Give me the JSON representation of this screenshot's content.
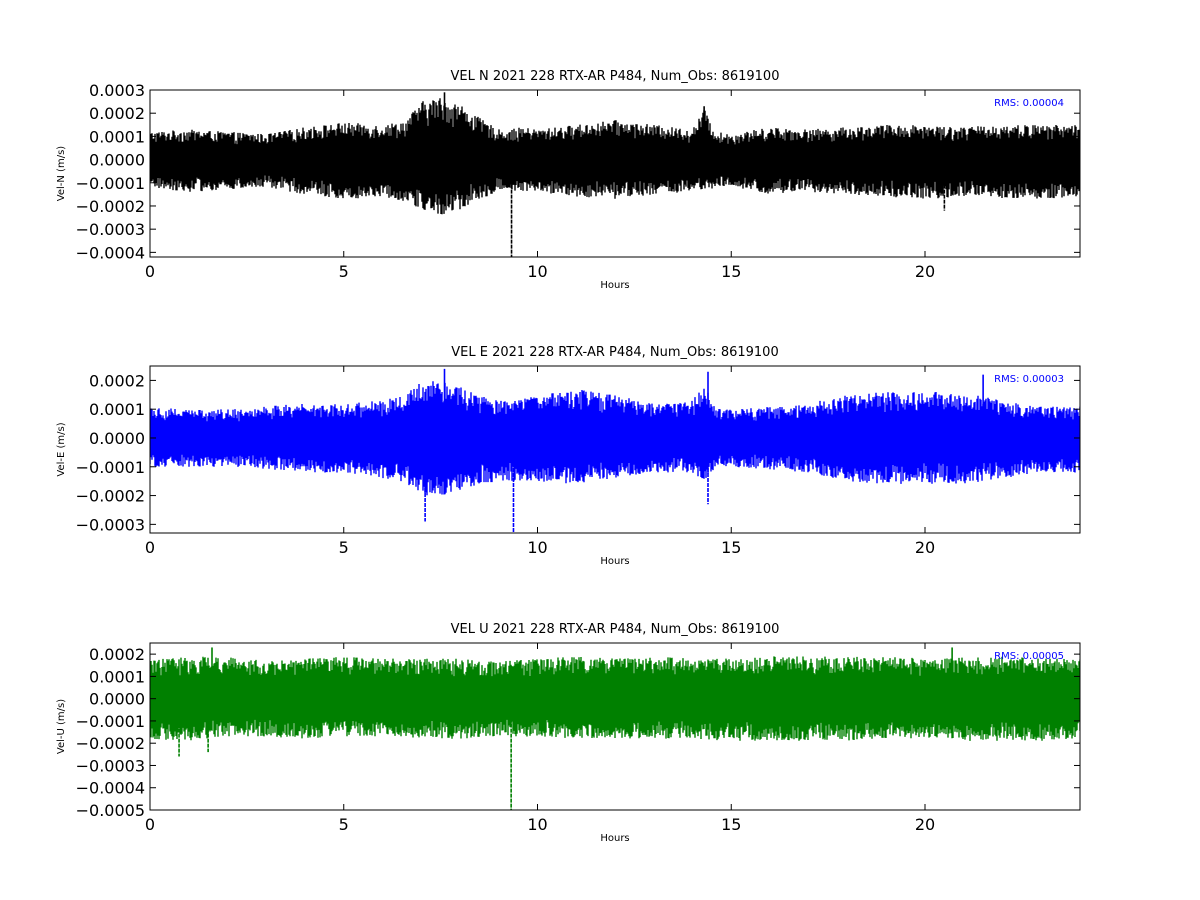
{
  "chart_data": [
    {
      "type": "line",
      "title": "VEL N 2021 228 RTX-AR  P484, Num_Obs: 8619100",
      "xlabel": "Hours",
      "ylabel": "Vel-N (m/s)",
      "xlim": [
        0,
        24
      ],
      "ylim": [
        -0.00042,
        0.0003
      ],
      "xticks": [
        "0",
        "5",
        "10",
        "15",
        "20"
      ],
      "yticks": [
        "0.0003",
        "0.0002",
        "0.0001",
        "0.0000",
        "−0.0001",
        "−0.0002",
        "−0.0003",
        "−0.0004"
      ],
      "ytick_values": [
        0.0003,
        0.0002,
        0.0001,
        0.0,
        -0.0001,
        -0.0002,
        -0.0003,
        -0.0004
      ],
      "annotation": "RMS:  0.00004",
      "color": "#000000",
      "grid": false,
      "envelope": {
        "hours": [
          0,
          1,
          2,
          3,
          4,
          5,
          6,
          6.6,
          7,
          7.5,
          8,
          8.5,
          9,
          9.3,
          9.6,
          10,
          11,
          12,
          13,
          14,
          14.3,
          14.6,
          15,
          16,
          17,
          18,
          19,
          20,
          21,
          22,
          23,
          24
        ],
        "upper": [
          0.00012,
          0.00013,
          0.00012,
          0.00011,
          0.00014,
          0.00016,
          0.00015,
          0.00017,
          0.00025,
          0.00027,
          0.00024,
          0.00018,
          0.00013,
          0.00013,
          0.00014,
          0.00013,
          0.00015,
          0.00017,
          0.00015,
          0.00013,
          0.00022,
          0.00012,
          0.00011,
          0.00014,
          0.00013,
          0.00014,
          0.00015,
          0.00015,
          0.00014,
          0.00015,
          0.00015,
          0.00015
        ],
        "lower": [
          -0.00012,
          -0.00014,
          -0.00013,
          -0.00012,
          -0.00015,
          -0.00017,
          -0.00016,
          -0.00018,
          -0.00022,
          -0.00024,
          -0.00022,
          -0.00017,
          -0.00014,
          -0.00013,
          -0.00014,
          -0.00014,
          -0.00016,
          -0.00017,
          -0.00015,
          -0.00014,
          -0.00014,
          -0.00012,
          -0.00012,
          -0.00015,
          -0.00014,
          -0.00015,
          -0.00016,
          -0.00017,
          -0.00016,
          -0.00017,
          -0.00017,
          -0.00016
        ]
      },
      "spikes": [
        {
          "hour": 9.33,
          "value": -0.00042
        },
        {
          "hour": 7.6,
          "value": 0.00029
        },
        {
          "hour": 14.3,
          "value": 0.00023
        },
        {
          "hour": 20.5,
          "value": -0.00022
        }
      ]
    },
    {
      "type": "line",
      "title": "VEL E 2021 228 RTX-AR  P484, Num_Obs: 8619100",
      "xlabel": "Hours",
      "ylabel": "Vel-E (m/s)",
      "xlim": [
        0,
        24
      ],
      "ylim": [
        -0.00033,
        0.00025
      ],
      "xticks": [
        "0",
        "5",
        "10",
        "15",
        "20"
      ],
      "yticks": [
        "0.0002",
        "0.0001",
        "0.0000",
        "−0.0001",
        "−0.0002",
        "−0.0003"
      ],
      "ytick_values": [
        0.0002,
        0.0001,
        0.0,
        -0.0001,
        -0.0002,
        -0.0003
      ],
      "annotation": "RMS:  0.00003",
      "color": "#0000ff",
      "grid": false,
      "envelope": {
        "hours": [
          0,
          1,
          2,
          3,
          4,
          5,
          6,
          6.6,
          7,
          7.5,
          8,
          8.5,
          9,
          9.4,
          10,
          11,
          12,
          13,
          14,
          14.3,
          14.6,
          15,
          16,
          17,
          18,
          19,
          20,
          21,
          22,
          23,
          24
        ],
        "upper": [
          0.00011,
          0.0001,
          0.0001,
          0.00011,
          0.00012,
          0.00012,
          0.00013,
          0.00015,
          0.0002,
          0.00021,
          0.00018,
          0.00015,
          0.00013,
          0.00013,
          0.00015,
          0.00017,
          0.00015,
          0.00012,
          0.00013,
          0.00019,
          0.00011,
          0.0001,
          0.00011,
          0.00012,
          0.00015,
          0.00016,
          0.00016,
          0.00016,
          0.00013,
          0.00011,
          0.00011
        ],
        "lower": [
          -0.0001,
          -0.0001,
          -0.0001,
          -0.00011,
          -0.00012,
          -0.00012,
          -0.00014,
          -0.00016,
          -0.0002,
          -0.0002,
          -0.00018,
          -0.00016,
          -0.00015,
          -0.00015,
          -0.00015,
          -0.00016,
          -0.00014,
          -0.00012,
          -0.00012,
          -0.00015,
          -0.0001,
          -0.0001,
          -0.00011,
          -0.00012,
          -0.00015,
          -0.00016,
          -0.00016,
          -0.00016,
          -0.00014,
          -0.00012,
          -0.00012
        ]
      },
      "spikes": [
        {
          "hour": 9.38,
          "value": -0.00033
        },
        {
          "hour": 7.1,
          "value": -0.00029
        },
        {
          "hour": 7.6,
          "value": 0.00024
        },
        {
          "hour": 14.4,
          "value": 0.00023
        },
        {
          "hour": 14.4,
          "value": -0.00023
        },
        {
          "hour": 21.5,
          "value": 0.00022
        }
      ]
    },
    {
      "type": "line",
      "title": "VEL U 2021 228 RTX-AR  P484, Num_Obs: 8619100",
      "xlabel": "Hours",
      "ylabel": "Vel-U (m/s)",
      "xlim": [
        0,
        24
      ],
      "ylim": [
        -0.0005,
        0.00025
      ],
      "xticks": [
        "0",
        "5",
        "10",
        "15",
        "20"
      ],
      "yticks": [
        "0.0002",
        "0.0001",
        "0.0000",
        "−0.0001",
        "−0.0002",
        "−0.0003",
        "−0.0004",
        "−0.0005"
      ],
      "ytick_values": [
        0.0002,
        0.0001,
        0.0,
        -0.0001,
        -0.0002,
        -0.0003,
        -0.0004,
        -0.0005
      ],
      "annotation": "RMS:  0.00005",
      "color": "#008000",
      "grid": false,
      "envelope": {
        "hours": [
          0,
          1,
          2,
          3,
          4,
          5,
          6,
          7,
          8,
          9,
          10,
          11,
          12,
          13,
          14,
          15,
          16,
          17,
          18,
          19,
          20,
          21,
          22,
          23,
          24
        ],
        "upper": [
          0.00018,
          0.00019,
          0.00019,
          0.00017,
          0.00018,
          0.00019,
          0.00018,
          0.00018,
          0.00018,
          0.00017,
          0.00018,
          0.00019,
          0.00018,
          0.00019,
          0.00018,
          0.00018,
          0.00019,
          0.00019,
          0.00019,
          0.00019,
          0.00018,
          0.00019,
          0.00019,
          0.00018,
          0.00018
        ],
        "lower": [
          -0.00018,
          -0.00019,
          -0.00017,
          -0.00017,
          -0.00018,
          -0.00017,
          -0.00017,
          -0.00018,
          -0.00018,
          -0.00017,
          -0.00017,
          -0.00018,
          -0.00018,
          -0.00018,
          -0.00018,
          -0.00019,
          -0.00019,
          -0.00019,
          -0.00019,
          -0.00018,
          -0.00018,
          -0.00019,
          -0.00019,
          -0.00019,
          -0.00018
        ]
      },
      "spikes": [
        {
          "hour": 9.32,
          "value": -0.0005
        },
        {
          "hour": 0.75,
          "value": -0.00026
        },
        {
          "hour": 1.5,
          "value": -0.00024
        },
        {
          "hour": 1.6,
          "value": 0.00023
        },
        {
          "hour": 20.7,
          "value": 0.00023
        }
      ]
    }
  ]
}
